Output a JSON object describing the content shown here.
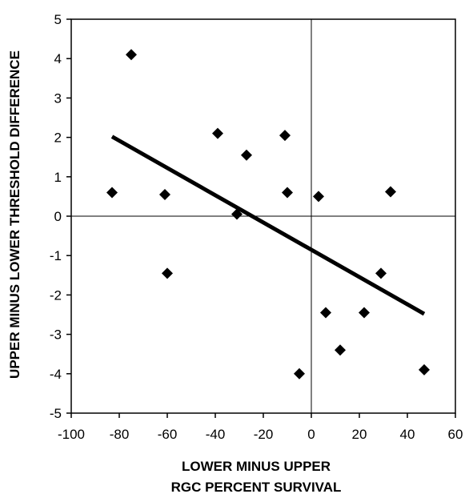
{
  "chart_data": {
    "type": "scatter",
    "xlabel_lines": [
      "LOWER MINUS UPPER",
      "RGC PERCENT SURVIVAL"
    ],
    "ylabel": "UPPER MINUS LOWER THRESHOLD DIFFERENCE",
    "xlim": [
      -100,
      60
    ],
    "ylim": [
      -5,
      5
    ],
    "x_ticks": [
      -100,
      -80,
      -60,
      -40,
      -20,
      0,
      20,
      40,
      60
    ],
    "y_ticks": [
      -5,
      -4,
      -3,
      -2,
      -1,
      0,
      1,
      2,
      3,
      4,
      5
    ],
    "grid": false,
    "zero_lines": true,
    "points": [
      {
        "x": -83,
        "y": 0.6
      },
      {
        "x": -75,
        "y": 4.1
      },
      {
        "x": -61,
        "y": 0.55
      },
      {
        "x": -60,
        "y": -1.45
      },
      {
        "x": -39,
        "y": 2.1
      },
      {
        "x": -31,
        "y": 0.05
      },
      {
        "x": -27,
        "y": 1.55
      },
      {
        "x": -11,
        "y": 2.05
      },
      {
        "x": -10,
        "y": 0.6
      },
      {
        "x": -5,
        "y": -4.0
      },
      {
        "x": 3,
        "y": 0.5
      },
      {
        "x": 6,
        "y": -2.45
      },
      {
        "x": 12,
        "y": -3.4
      },
      {
        "x": 22,
        "y": -2.45
      },
      {
        "x": 29,
        "y": -1.45
      },
      {
        "x": 33,
        "y": 0.62
      },
      {
        "x": 47,
        "y": -3.9
      }
    ],
    "fit_line": {
      "x": [
        -83,
        47
      ],
      "y": [
        2.02,
        -2.48
      ]
    }
  }
}
